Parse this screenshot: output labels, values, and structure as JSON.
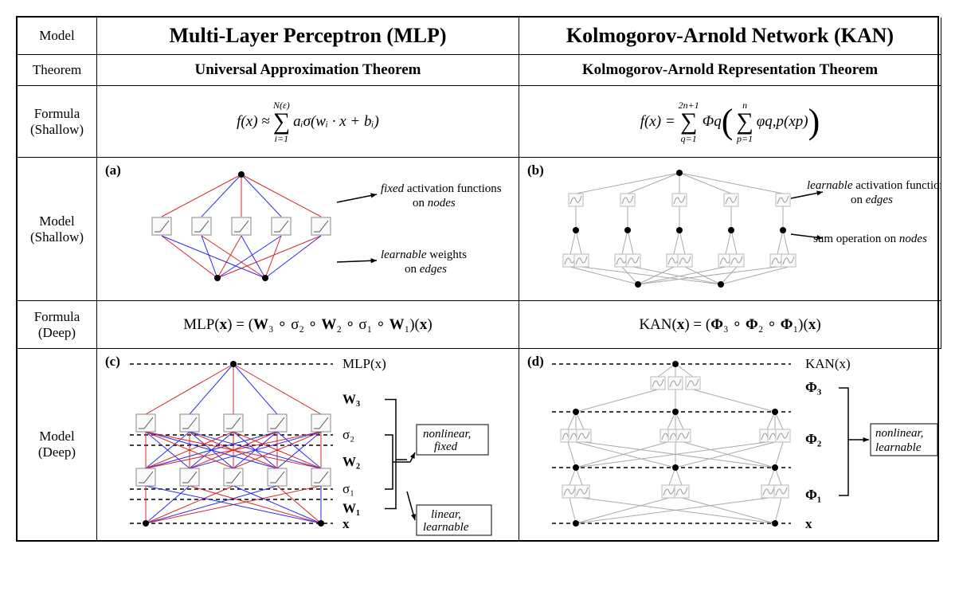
{
  "rows": {
    "model": "Model",
    "theorem": "Theorem",
    "formula_shallow": "Formula (Shallow)",
    "model_shallow": "Model (Shallow)",
    "formula_deep": "Formula (Deep)",
    "model_deep": "Model (Deep)"
  },
  "mlp": {
    "title": "Multi-Layer Perceptron (MLP)",
    "theorem": "Universal Approximation Theorem",
    "shallow_formula": {
      "lhs": "f(x) ≈",
      "sum_top": "N(ε)",
      "sum_bottom": "i=1",
      "rhs": "aᵢσ(wᵢ · x + bᵢ)"
    },
    "deep_formula": "MLP(x) = (W₃ ∘ σ₂ ∘ W₂ ∘ σ₁ ∘ W₁)(x)",
    "panel_a": "(a)",
    "panel_c": "(c)",
    "ann_nodes_1": "fixed",
    "ann_nodes_2": " activation functions",
    "ann_nodes_3": "on ",
    "ann_nodes_4": "nodes",
    "ann_edges_1": "learnable",
    "ann_edges_2": " weights",
    "ann_edges_3": "on ",
    "ann_edges_4": "edges",
    "out_label": "MLP(x)",
    "in_label": "x",
    "W3": "W₃",
    "W2": "W₂",
    "W1": "W₁",
    "s2": "σ₂",
    "s1": "σ₁",
    "box_nonlin": "nonlinear, fixed",
    "box_lin": "linear, learnable",
    "shallow_net": {
      "inputs": 2,
      "hidden": 5,
      "outputs": 1,
      "edge_colors_in": [
        "#d62728",
        "#2a2aee",
        "#d62728",
        "#2a2aee",
        "#d62728",
        "#2a2aee",
        "#d62728",
        "#2a2aee",
        "#d62728",
        "#2a2aee"
      ],
      "edge_colors_out": [
        "#d62728",
        "#2a2aee",
        "#d62728",
        "#2a2aee",
        "#d62728"
      ]
    }
  },
  "kan": {
    "title": "Kolmogorov-Arnold Network (KAN)",
    "theorem": "Kolmogorov-Arnold Representation Theorem",
    "shallow_formula": {
      "lhs": "f(x) =",
      "sum1_top": "2n+1",
      "sum1_bottom": "q=1",
      "mid": "Φq",
      "sum2_top": "n",
      "sum2_bottom": "p=1",
      "inner": "φq,p(xp)"
    },
    "deep_formula": "KAN(x) = (Φ₃ ∘ Φ₂ ∘ Φ₁)(x)",
    "panel_b": "(b)",
    "panel_d": "(d)",
    "ann_edges_1": "learnable",
    "ann_edges_2": " activation functions",
    "ann_edges_3": "on ",
    "ann_edges_4": "edges",
    "ann_nodes": "sum operation on ",
    "ann_nodes_it": "nodes",
    "out_label": "KAN(x)",
    "in_label": "x",
    "P3": "Φ₃",
    "P2": "Φ₂",
    "P1": "Φ₁",
    "box_nonlin": "nonlinear, learnable"
  },
  "style": {
    "node_radius": 4,
    "actbox_w": 24,
    "actbox_h": 22,
    "kanbox_w": 18,
    "kanbox_h": 16,
    "colors": {
      "red": "#d62728",
      "blue": "#2a2aee",
      "gray": "#aaaaaa",
      "black": "#000000",
      "boxfill": "#fafafa"
    }
  }
}
